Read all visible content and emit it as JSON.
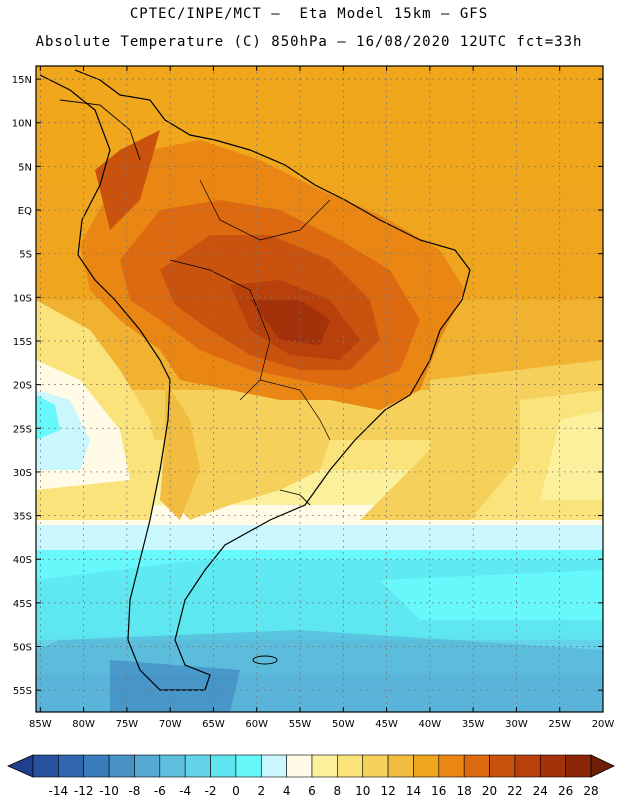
{
  "header": {
    "line1": "CPTEC/INPE/MCT –  Eta Model 15km – GFS",
    "line2": "Absolute Temperature (C) 850hPa – 16/08/2020 12UTC fct=33h"
  },
  "map": {
    "lat_labels": [
      "15N",
      "10N",
      "5N",
      "EQ",
      "5S",
      "10S",
      "15S",
      "20S",
      "25S",
      "30S",
      "35S",
      "40S",
      "45S",
      "50S",
      "55S"
    ],
    "lon_labels": [
      "85W",
      "80W",
      "75W",
      "70W",
      "65W",
      "60W",
      "55W",
      "50W",
      "45W",
      "40W",
      "35W",
      "30W",
      "25W",
      "20W"
    ],
    "lat_range": [
      16.5,
      -57.5
    ],
    "lon_range": [
      -85.5,
      -20
    ]
  },
  "colorbar": {
    "labels": [
      "-14",
      "-12",
      "-10",
      "-8",
      "-6",
      "-4",
      "-2",
      "0",
      "2",
      "4",
      "6",
      "8",
      "10",
      "12",
      "14",
      "16",
      "18",
      "20",
      "22",
      "24",
      "26",
      "28"
    ],
    "colors": [
      "#1f3f8f",
      "#27529e",
      "#2f66ad",
      "#3a7cbc",
      "#4892c6",
      "#55a9d2",
      "#5fbfdf",
      "#62d3e8",
      "#5ee6f0",
      "#66f8fb",
      "#c9f7fd",
      "#fffbe6",
      "#fbf09c",
      "#fae37a",
      "#f5d05b",
      "#f1bc3f",
      "#efa51e",
      "#ea8613",
      "#dd6a10",
      "#c9520e",
      "#b8400b",
      "#a3310a",
      "#8b2508",
      "#6e1d06"
    ]
  }
}
